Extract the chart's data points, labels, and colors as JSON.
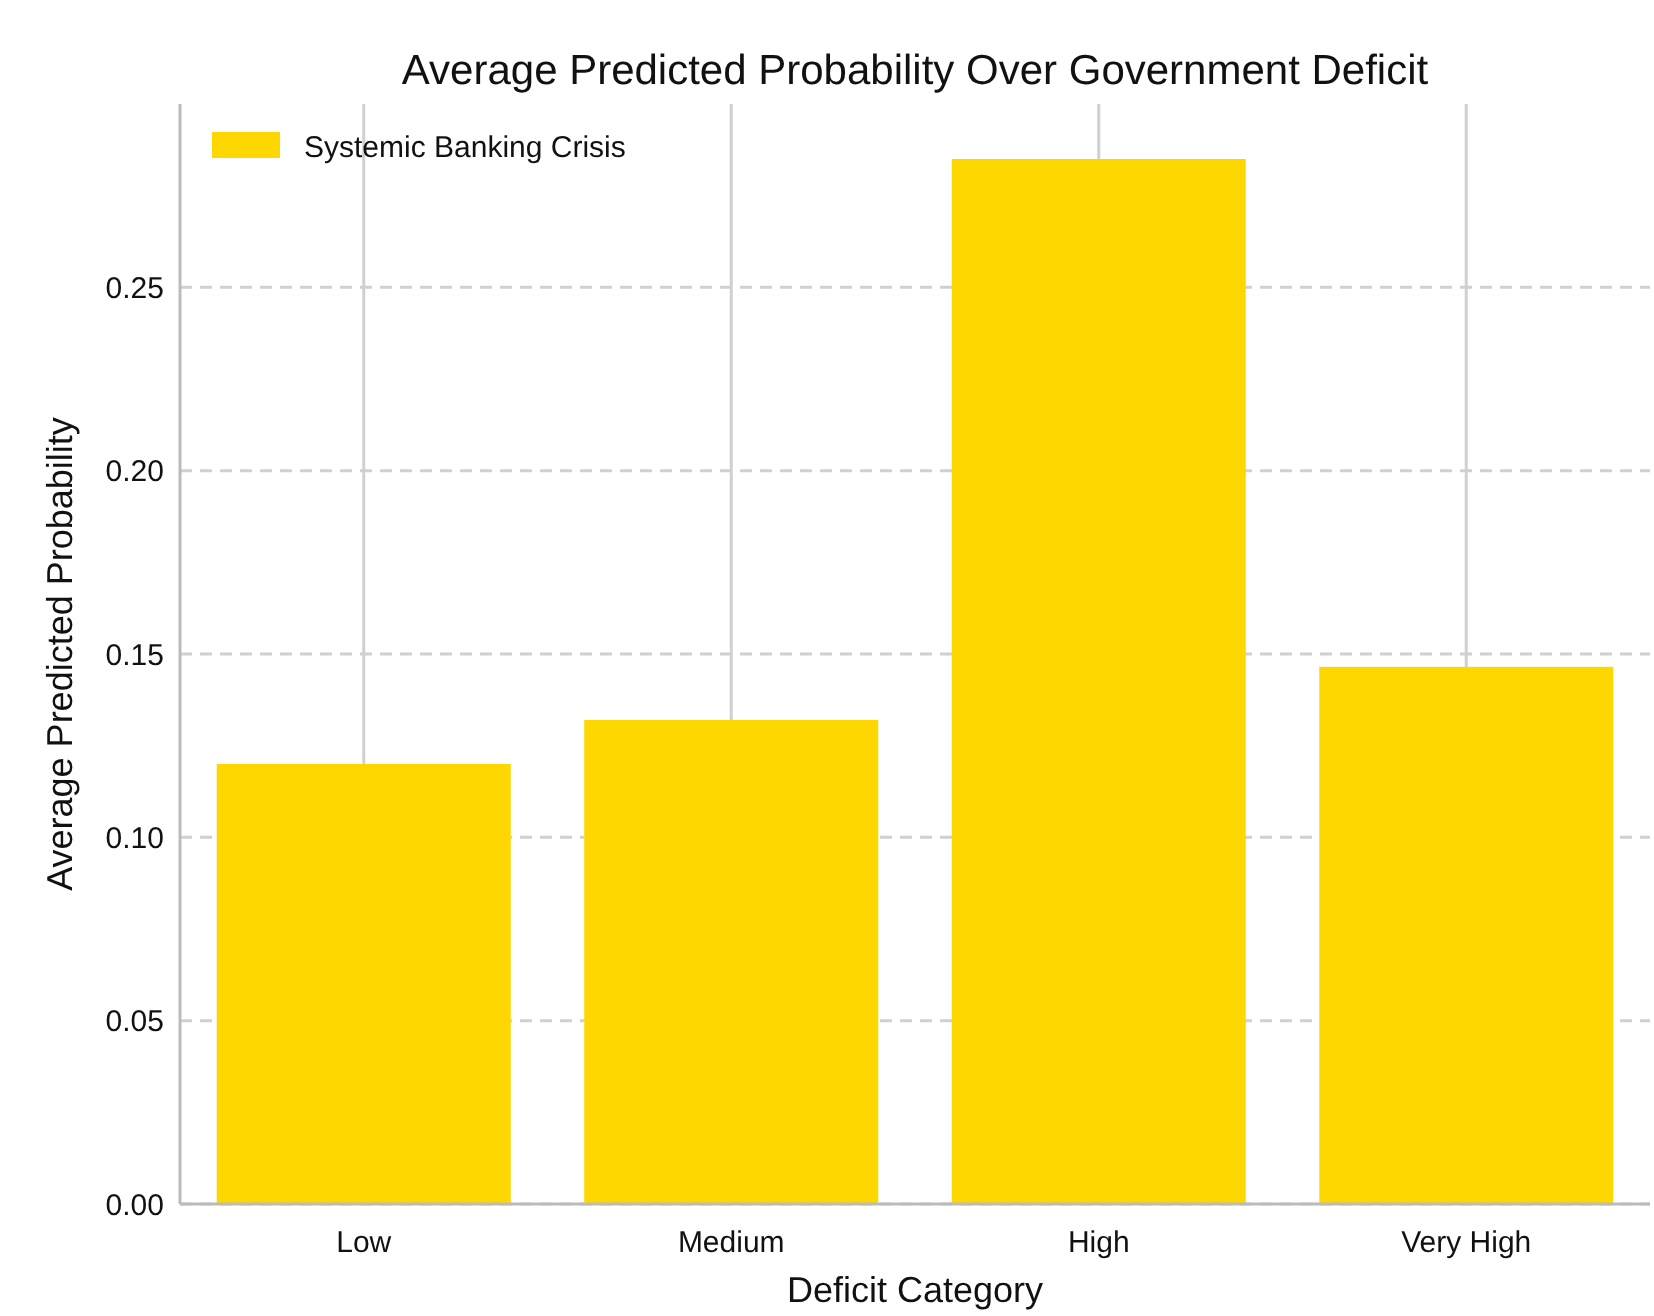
{
  "chart_data": {
    "type": "bar",
    "title": "Average Predicted Probability Over Government Deficit",
    "xlabel": "Deficit Category",
    "ylabel": "Average Predicted Probability",
    "categories": [
      "Low",
      "Medium",
      "High",
      "Very High"
    ],
    "series": [
      {
        "name": "Systemic Banking Crisis",
        "color": "#ffd700",
        "values": [
          0.12,
          0.132,
          0.285,
          0.1465
        ]
      }
    ],
    "ylim": [
      0,
      0.3
    ],
    "yticks": [
      {
        "value": 0,
        "label": "0.00"
      },
      {
        "value": 0.05,
        "label": "0.05"
      },
      {
        "value": 0.1,
        "label": "0.10"
      },
      {
        "value": 0.15,
        "label": "0.15"
      },
      {
        "value": 0.2,
        "label": "0.20"
      },
      {
        "value": 0.25,
        "label": "0.25"
      }
    ],
    "grid": true,
    "legend": "top left"
  }
}
